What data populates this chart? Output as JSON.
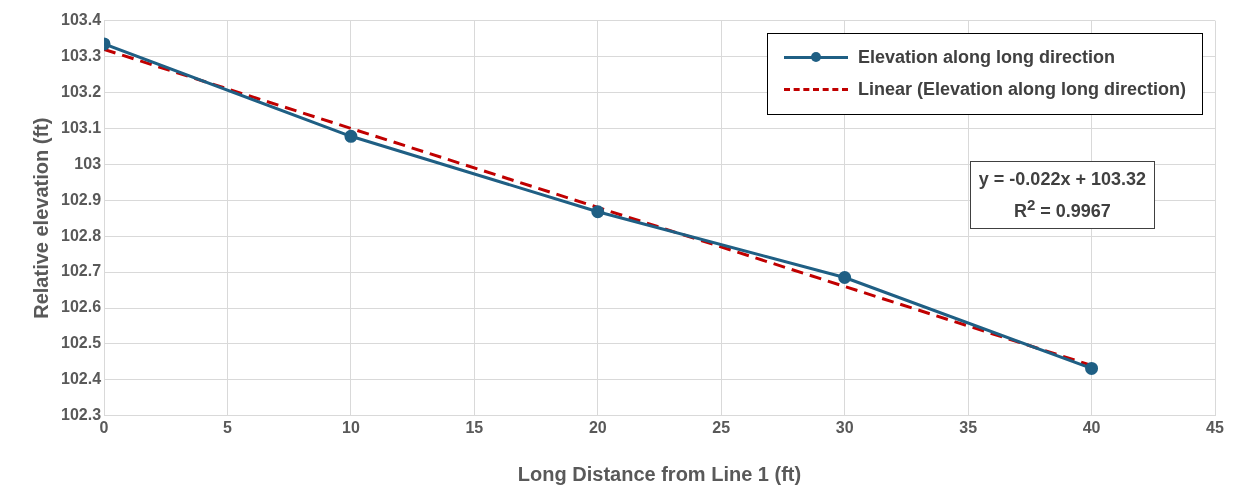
{
  "chart_data": {
    "type": "line",
    "xlabel": "Long Distance from Line 1 (ft)",
    "ylabel": "Relative elevation (ft)",
    "x": [
      0,
      10,
      20,
      30,
      40
    ],
    "series": [
      {
        "name": "Elevation along long direction",
        "color": "#1f5f84",
        "values": [
          103.335,
          103.078,
          102.868,
          102.685,
          102.432
        ],
        "marker": "circle",
        "line_style": "solid"
      },
      {
        "name": "Linear (Elevation along long direction)",
        "color": "#c00000",
        "type": "line",
        "x": [
          0,
          40
        ],
        "values": [
          103.32,
          102.44
        ],
        "marker": "none",
        "line_style": "dashed"
      }
    ],
    "xlim": [
      0,
      45
    ],
    "xticks": [
      0,
      5,
      10,
      15,
      20,
      25,
      30,
      35,
      40,
      45
    ],
    "ylim": [
      102.3,
      103.4
    ],
    "yticks": [
      102.3,
      102.4,
      102.5,
      102.6,
      102.7,
      102.8,
      102.9,
      103,
      103.1,
      103.2,
      103.3,
      103.4
    ],
    "grid": true,
    "legend": "top right",
    "annotations": [
      "y = -0.022x + 103.32",
      "R$^{2}$ = 0.9967"
    ]
  }
}
